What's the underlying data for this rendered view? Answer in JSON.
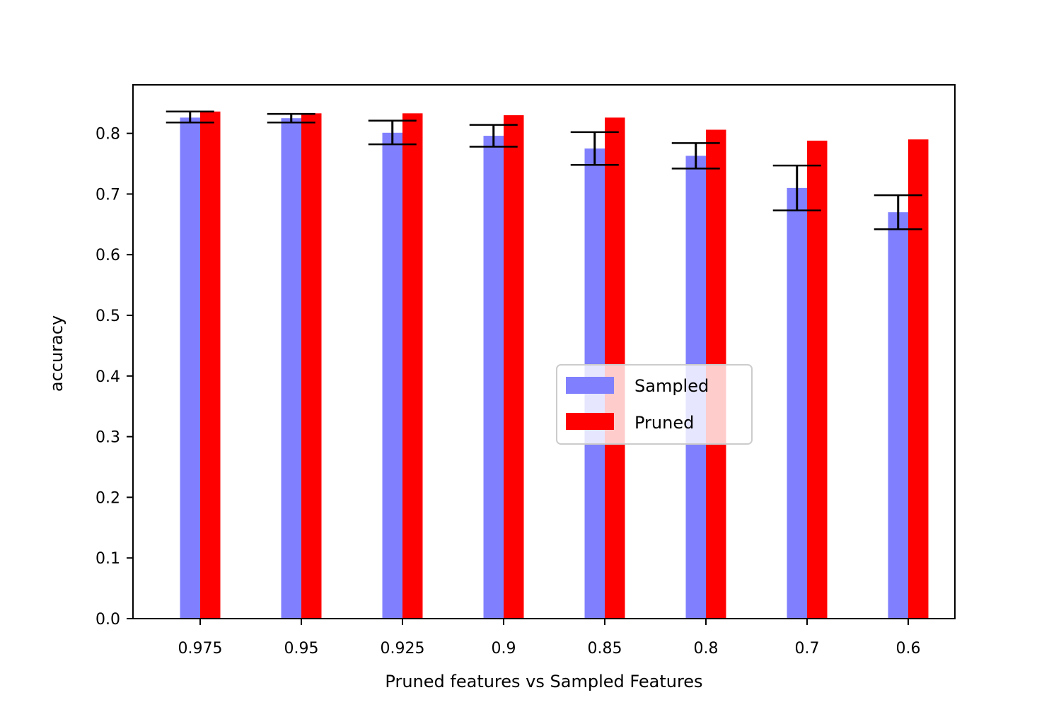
{
  "chart_data": {
    "type": "bar",
    "xlabel": "Pruned features vs Sampled Features",
    "ylabel": "accuracy",
    "categories": [
      "0.975",
      "0.95",
      "0.925",
      "0.9",
      "0.85",
      "0.8",
      "0.7",
      "0.6"
    ],
    "ylim": [
      0,
      0.88
    ],
    "yticks": [
      "0.0",
      "0.1",
      "0.2",
      "0.3",
      "0.4",
      "0.5",
      "0.6",
      "0.7",
      "0.8"
    ],
    "series": [
      {
        "name": "Sampled",
        "color": "#8080ff",
        "values": [
          0.826,
          0.825,
          0.801,
          0.796,
          0.775,
          0.763,
          0.71,
          0.67
        ],
        "error_low": [
          0.818,
          0.818,
          0.782,
          0.778,
          0.748,
          0.742,
          0.673,
          0.642
        ],
        "error_high": [
          0.836,
          0.832,
          0.821,
          0.814,
          0.802,
          0.784,
          0.747,
          0.698
        ]
      },
      {
        "name": "Pruned",
        "color": "#ff0000",
        "values": [
          0.836,
          0.833,
          0.833,
          0.83,
          0.826,
          0.806,
          0.788,
          0.79
        ]
      }
    ],
    "grid": false,
    "legend_position": "center-right"
  }
}
